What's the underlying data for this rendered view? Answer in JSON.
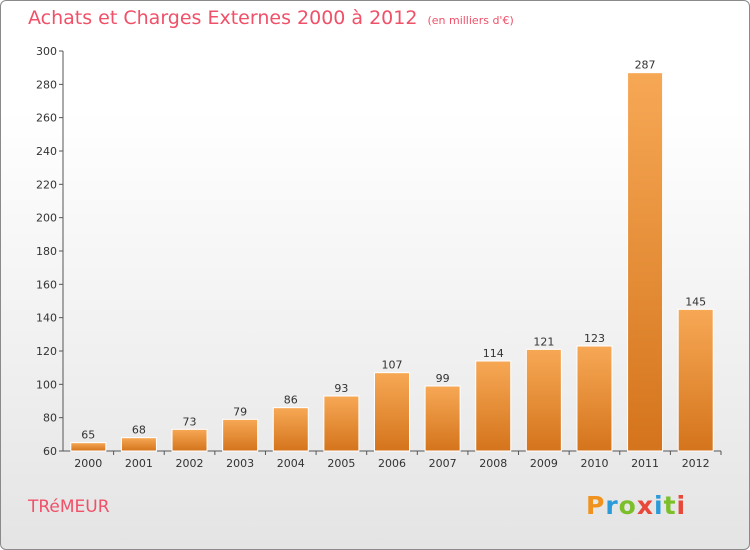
{
  "chart_data": {
    "type": "bar",
    "title": "Achats et Charges Externes 2000 à 2012",
    "subtitle": "(en milliers d'€)",
    "categories": [
      "2000",
      "2001",
      "2002",
      "2003",
      "2004",
      "2005",
      "2006",
      "2007",
      "2008",
      "2009",
      "2010",
      "2011",
      "2012"
    ],
    "values": [
      65,
      68,
      73,
      79,
      86,
      93,
      107,
      99,
      114,
      121,
      123,
      287,
      145
    ],
    "ylim": [
      60,
      300
    ],
    "yticks": [
      60,
      80,
      100,
      120,
      140,
      160,
      180,
      200,
      220,
      240,
      260,
      280,
      300
    ],
    "grid": false,
    "bar_color_top": "#f7a855",
    "bar_color_bottom": "#d4741c"
  },
  "commune": "TRéMEUR",
  "logo": {
    "text": "Proxiti",
    "letters": [
      "P",
      "r",
      "o",
      "x",
      "i",
      "t",
      "i"
    ],
    "colors": [
      "#f0921e",
      "#2a9bd8",
      "#7cbf2b",
      "#e8473a",
      "#2a9bd8",
      "#7cbf2b",
      "#e8473a"
    ]
  }
}
